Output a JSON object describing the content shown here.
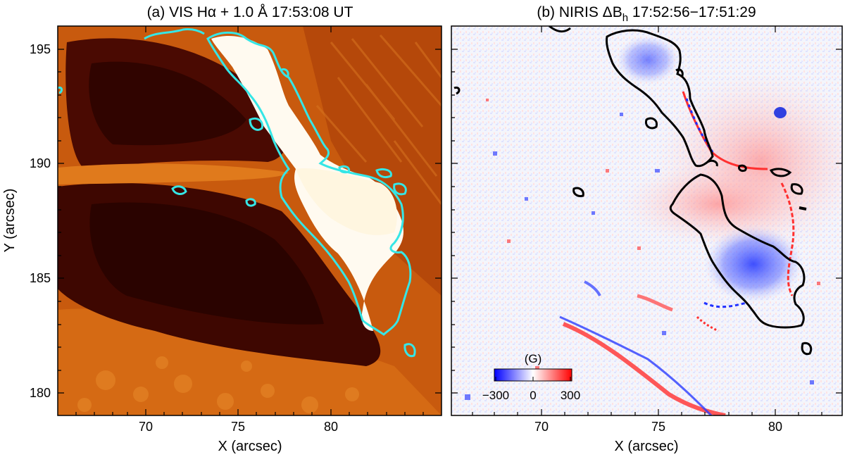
{
  "panel_a": {
    "title": "(a) VIS Hα + 1.0 Å 17:53:08 UT",
    "x_axis_label": "X (arcsec)",
    "y_axis_label": "Y (arcsec)",
    "x_ticks": [
      "70",
      "75",
      "80"
    ],
    "y_ticks": [
      "180",
      "185",
      "190",
      "195"
    ],
    "contour_color": "#35e6e6"
  },
  "panel_b": {
    "title_main": "(b) NIRIS ΔB",
    "title_sub": "h",
    "title_time": " 17:52:56−17:51:29",
    "x_axis_label": "X (arcsec)",
    "x_ticks": [
      "70",
      "75",
      "80"
    ],
    "contour_color": "#000000",
    "colorbar": {
      "label": "(G)",
      "ticks": [
        "−300",
        "0",
        "300"
      ],
      "min_color": "#0000ff",
      "max_color": "#ff0000"
    }
  },
  "axis_ranges": {
    "x": [
      66,
      83
    ],
    "y": [
      179,
      196
    ]
  }
}
